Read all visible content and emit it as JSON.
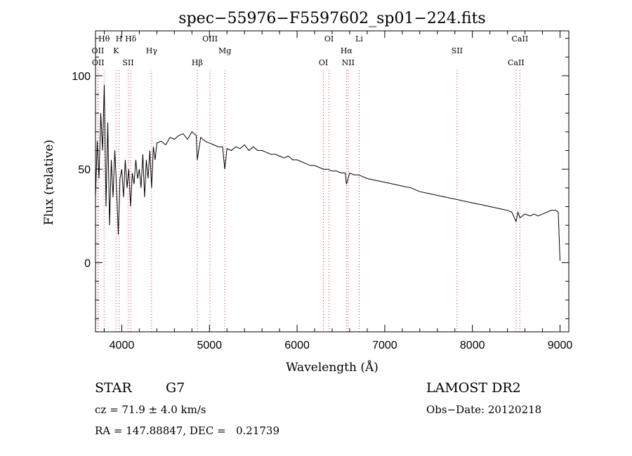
{
  "chart_data": {
    "type": "line",
    "title": "spec−55976−F5597602_sp01−224.fits",
    "xlabel": "Wavelength (Å)",
    "ylabel": "Flux (relative)",
    "xlim": [
      3700,
      9100
    ],
    "ylim": [
      -37,
      124
    ],
    "x_ticks": [
      4000,
      5000,
      6000,
      7000,
      8000,
      9000
    ],
    "y_ticks": [
      0,
      50,
      100
    ],
    "x_tick_labels": [
      "4000",
      "5000",
      "6000",
      "7000",
      "8000",
      "9000"
    ],
    "y_tick_labels": [
      "0",
      "50",
      "100"
    ],
    "grid": false,
    "line_color": "#000000",
    "marker_color": "#d62728",
    "spectral_lines": [
      {
        "label": "Hθ",
        "x": 3798
      },
      {
        "label": "OII",
        "x": 3727
      },
      {
        "label": "OII",
        "x": 3730
      },
      {
        "label": "H",
        "x": 3969
      },
      {
        "label": "K",
        "x": 3934
      },
      {
        "label": "SII",
        "x": 4072
      },
      {
        "label": "Hδ",
        "x": 4102
      },
      {
        "label": "Hγ",
        "x": 4340
      },
      {
        "label": "Hβ",
        "x": 4861
      },
      {
        "label": "OIII",
        "x": 5007
      },
      {
        "label": "Mg",
        "x": 5175
      },
      {
        "label": "OI",
        "x": 6300
      },
      {
        "label": "OI",
        "x": 6364
      },
      {
        "label": "Hα",
        "x": 6563
      },
      {
        "label": "NII",
        "x": 6583
      },
      {
        "label": "Li",
        "x": 6708
      },
      {
        "label": "SII",
        "x": 7825
      },
      {
        "label": "CaII",
        "x": 8498
      },
      {
        "label": "CaII",
        "x": 8542
      }
    ],
    "series": [
      {
        "x": [
          3700,
          3720,
          3740,
          3760,
          3780,
          3800,
          3820,
          3840,
          3860,
          3880,
          3900,
          3920,
          3940,
          3960,
          3980,
          4000,
          4020,
          4040,
          4060,
          4080,
          4100,
          4120,
          4140,
          4160,
          4180,
          4200,
          4220,
          4240,
          4260,
          4280,
          4300,
          4320,
          4340,
          4360,
          4380,
          4400,
          4450,
          4500,
          4550,
          4600,
          4650,
          4700,
          4750,
          4800,
          4850,
          4861,
          4900,
          4950,
          5000,
          5050,
          5100,
          5150,
          5175,
          5200,
          5250,
          5300,
          5350,
          5400,
          5450,
          5500,
          5550,
          5600,
          5650,
          5700,
          5750,
          5800,
          5850,
          5900,
          5950,
          6000,
          6050,
          6100,
          6150,
          6200,
          6250,
          6300,
          6350,
          6400,
          6450,
          6500,
          6550,
          6563,
          6600,
          6650,
          6700,
          6800,
          6900,
          7000,
          7100,
          7200,
          7300,
          7400,
          7500,
          7600,
          7700,
          7800,
          7900,
          8000,
          8100,
          8200,
          8300,
          8400,
          8450,
          8498,
          8520,
          8542,
          8600,
          8662,
          8700,
          8750,
          8800,
          8850,
          8900,
          8950,
          8980,
          9000
        ],
        "y": [
          35,
          65,
          45,
          80,
          60,
          95,
          30,
          75,
          20,
          55,
          35,
          60,
          40,
          15,
          45,
          50,
          35,
          55,
          40,
          50,
          30,
          48,
          42,
          55,
          45,
          50,
          40,
          58,
          35,
          55,
          45,
          60,
          40,
          62,
          55,
          64,
          65,
          63,
          67,
          66,
          68,
          69,
          66,
          70,
          68,
          55,
          67,
          65,
          64,
          63,
          62,
          62,
          50,
          61,
          60,
          62,
          61,
          63,
          60,
          62,
          60,
          60,
          59,
          58,
          58,
          57,
          56,
          57,
          55,
          55,
          54,
          53,
          52,
          52,
          51,
          50,
          50,
          49,
          49,
          48,
          48,
          42,
          48,
          47,
          47,
          45,
          44,
          43,
          42,
          41,
          40,
          38,
          37,
          36,
          35,
          34,
          33,
          32,
          31,
          30,
          29,
          28,
          27,
          22,
          27,
          24,
          26,
          25,
          26,
          25,
          26,
          27,
          28,
          28,
          27,
          1
        ]
      }
    ]
  },
  "info": {
    "object_class": "STAR",
    "subclass": "G7",
    "redshift": "cz = 71.9 ± 4.0 km/s",
    "coords": "RA = 147.88847, DEC =   0.21739",
    "survey": "LAMOST DR2",
    "obs_date": "Obs−Date: 20120218"
  }
}
